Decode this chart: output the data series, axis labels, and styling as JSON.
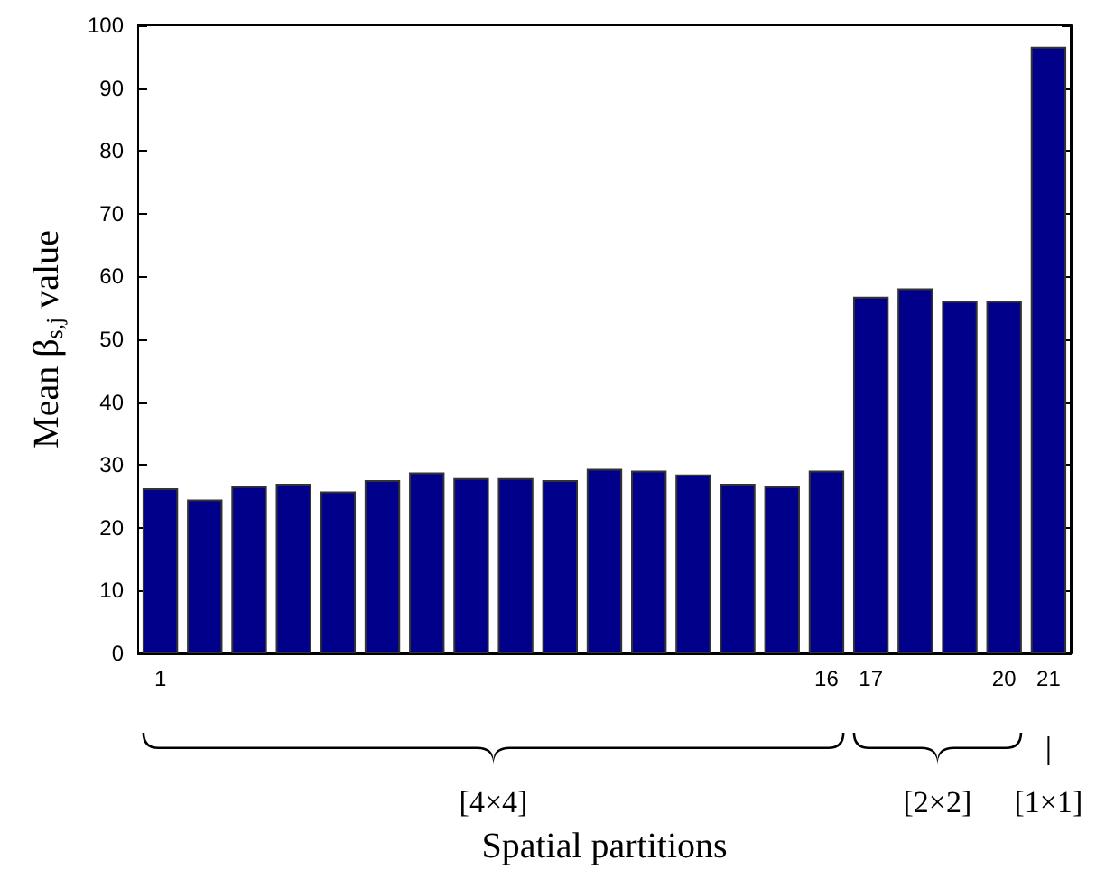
{
  "chart_data": {
    "type": "bar",
    "xlabel": "Spatial partitions",
    "ylabel": "Mean β$_{s,j}$ value",
    "categories": [
      "1",
      null,
      null,
      null,
      null,
      null,
      null,
      null,
      null,
      null,
      null,
      null,
      null,
      null,
      null,
      "16",
      "17",
      null,
      null,
      "20",
      "21"
    ],
    "values": [
      26.3,
      24.5,
      26.6,
      27.0,
      25.8,
      27.6,
      28.8,
      27.9,
      27.9,
      27.6,
      29.4,
      29.1,
      28.5,
      27.0,
      26.6,
      29.1,
      56.8,
      58.1,
      56.1,
      56.1,
      96.6
    ],
    "color": "#00008b",
    "ylim": [
      0,
      100
    ],
    "yticks": [
      0,
      10,
      20,
      30,
      40,
      50,
      60,
      70,
      80,
      90,
      100
    ],
    "annotations": [
      "[4×4]",
      "[2×2]",
      "[1×1]"
    ]
  }
}
